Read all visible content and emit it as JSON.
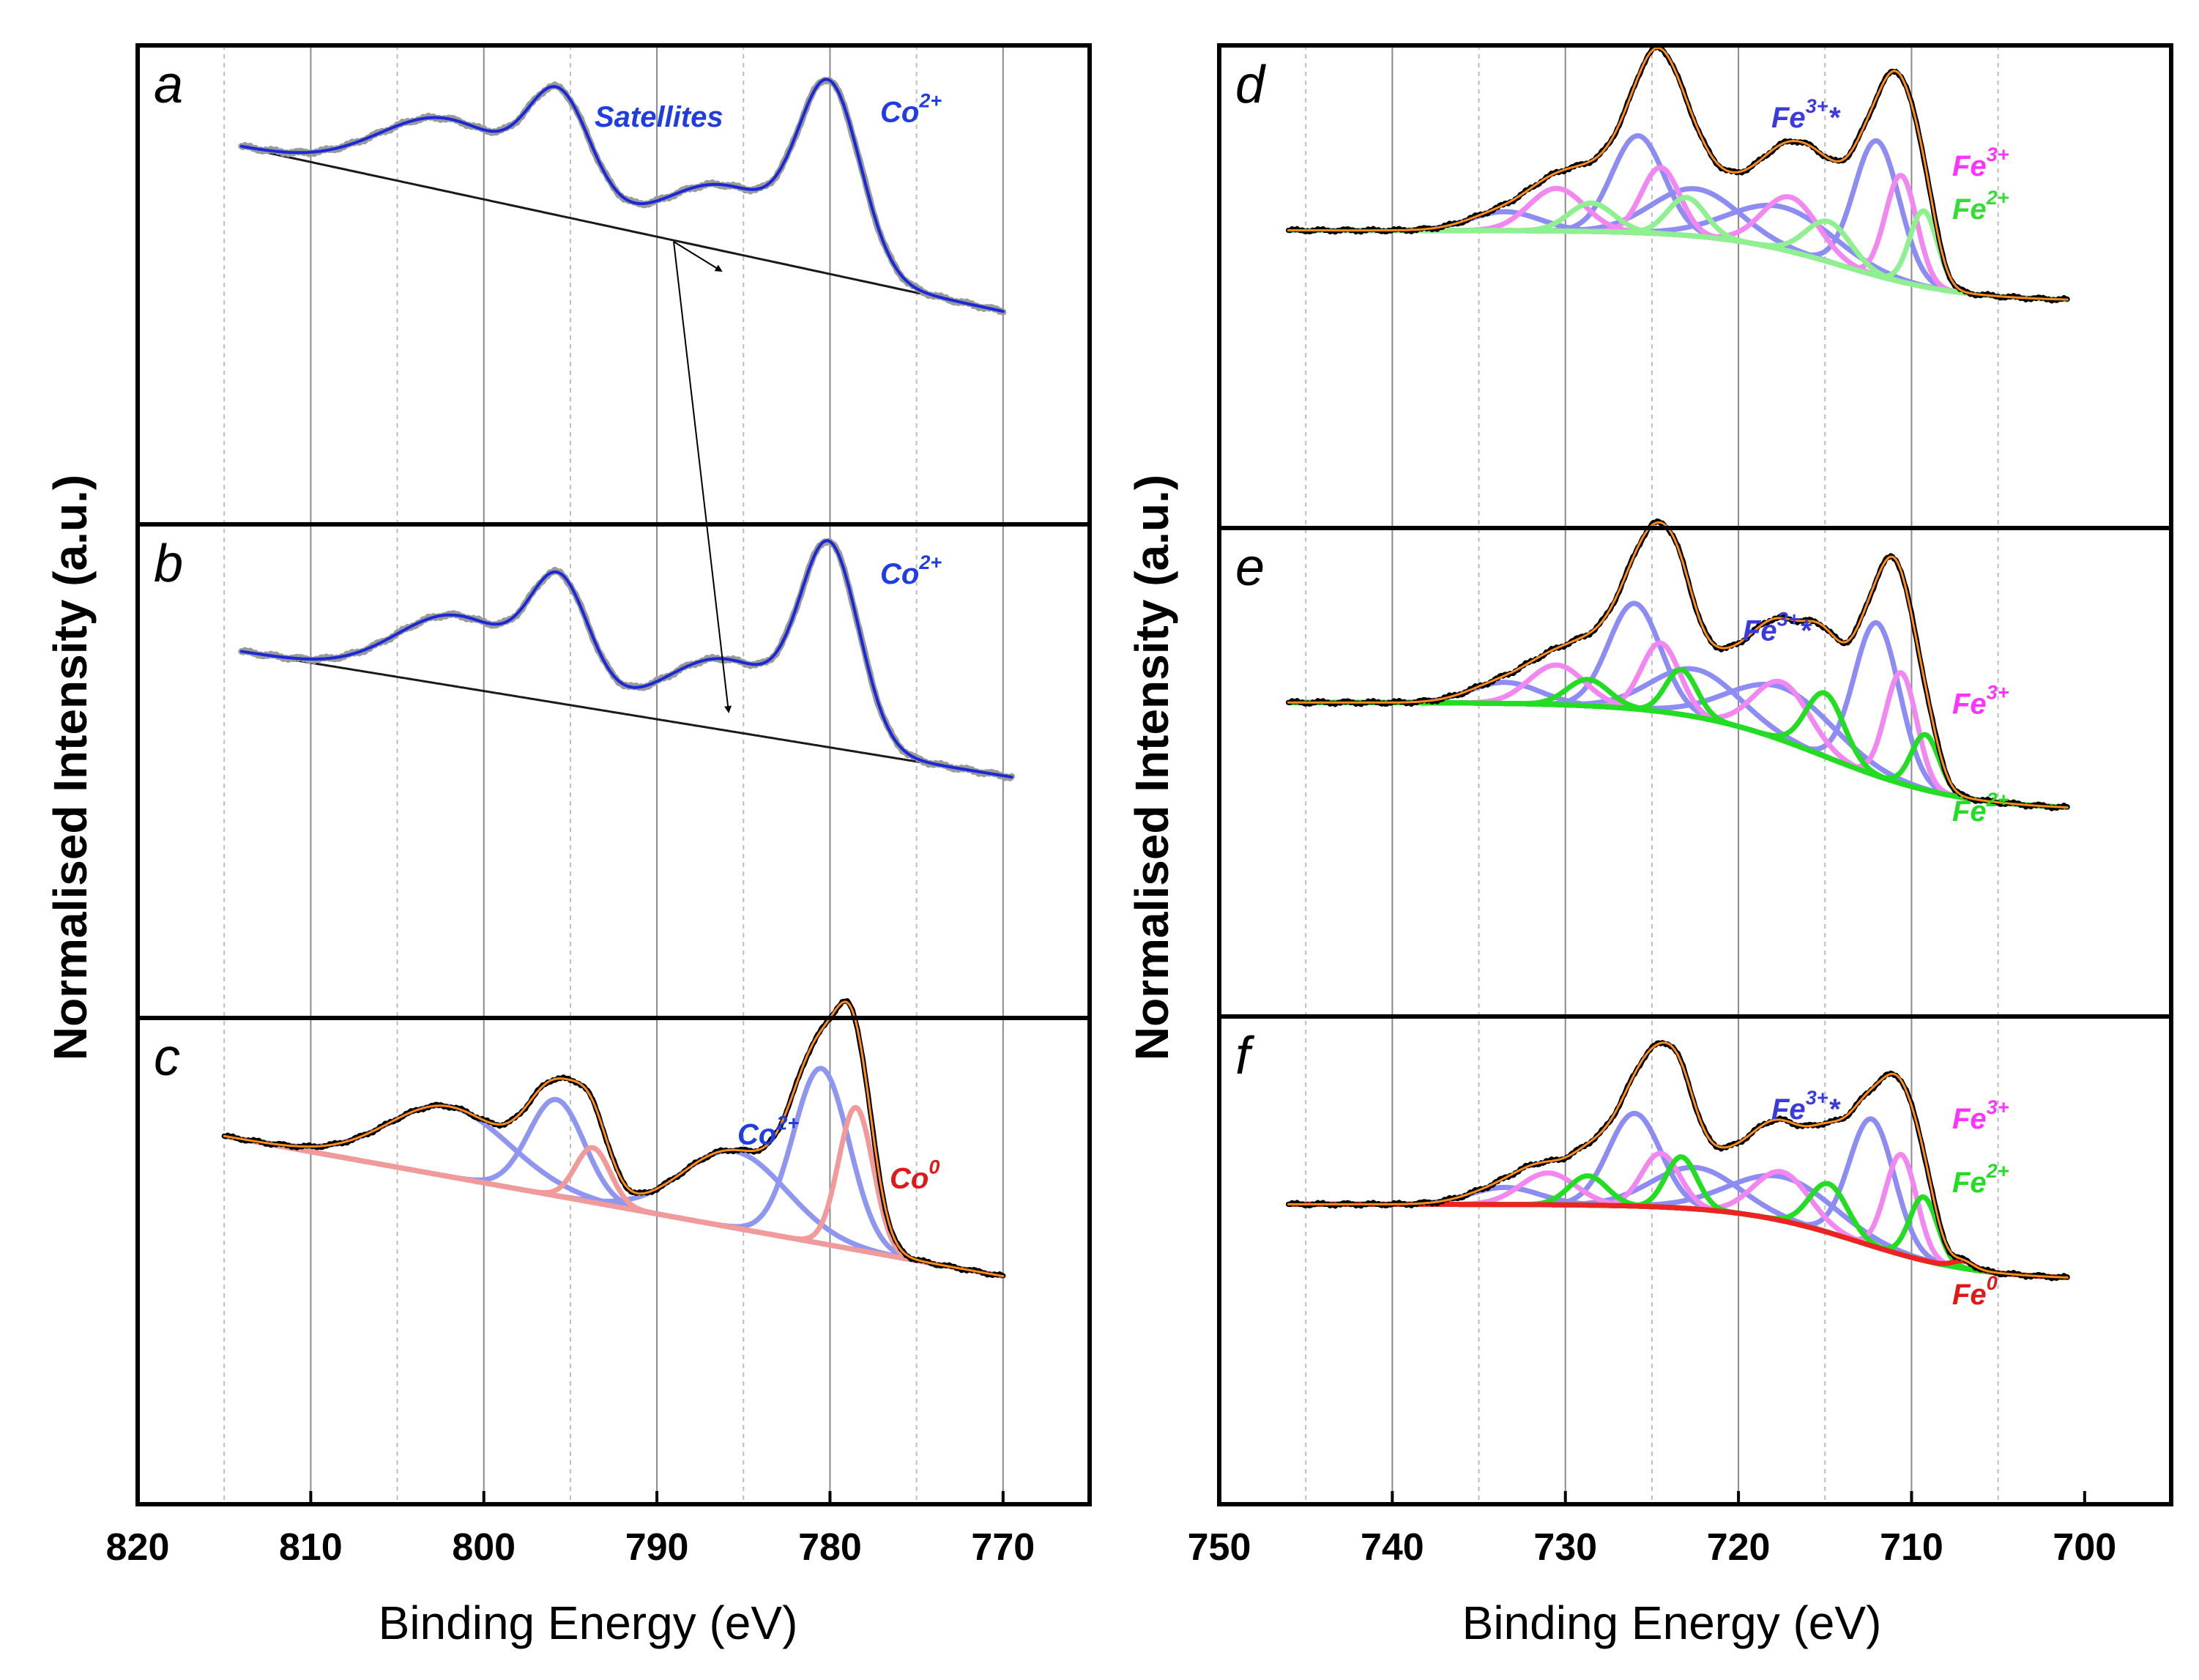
{
  "chart_data": [
    {
      "type": "line",
      "panels": [
        "a",
        "b",
        "c"
      ],
      "xlabel": "Binding Energy (eV)",
      "ylabel": "Normalised Intensity (a.u.)",
      "xlim": [
        820,
        765
      ],
      "xticks": [
        820,
        810,
        800,
        790,
        780,
        770
      ],
      "grid_major": [
        810,
        800,
        790,
        780,
        770
      ],
      "grid_minor": [
        815,
        805,
        795,
        785,
        775
      ],
      "panel_data": [
        {
          "letter": "a",
          "labels": [
            {
              "text": "Co",
              "sup": "2+",
              "color": "#1f3de0"
            },
            {
              "text": "Satellites",
              "color": "#1f3de0"
            }
          ],
          "peaks": [
            {
              "name": "Co2+ 2p3/2",
              "center": 780.0,
              "height": 0.76,
              "width": 1.8
            },
            {
              "name": "satellite",
              "center": 786.0,
              "height": 0.28,
              "width": 3.5
            },
            {
              "name": "Co2+ 2p1/2",
              "center": 795.6,
              "height": 0.45,
              "width": 1.8
            },
            {
              "name": "satellite",
              "center": 802.0,
              "height": 0.31,
              "width": 4.0
            }
          ],
          "background": {
            "start": 814.0,
            "end": 770.0,
            "y_start": 0.73,
            "y_end": 0.03
          },
          "series": [
            {
              "name": "data",
              "color": "#9a9a9a",
              "stroke": 9
            },
            {
              "name": "envelope",
              "color": "#1a28d8",
              "stroke": 4
            }
          ]
        },
        {
          "letter": "b",
          "labels": [
            {
              "text": "Co",
              "sup": "2+",
              "color": "#1f3de0"
            }
          ],
          "peaks": [
            {
              "name": "Co2+ 2p3/2",
              "center": 780.0,
              "height": 0.8,
              "width": 1.7
            },
            {
              "name": "satellite",
              "center": 786.0,
              "height": 0.3,
              "width": 3.5
            },
            {
              "name": "Co2+ 2p1/2",
              "center": 795.6,
              "height": 0.47,
              "width": 1.7
            },
            {
              "name": "satellite",
              "center": 801.5,
              "height": 0.3,
              "width": 3.5
            }
          ],
          "background": {
            "start": 814.0,
            "end": 769.5,
            "y_start": 0.63,
            "y_end": 0.1
          },
          "series": [
            {
              "name": "data",
              "color": "#9a9a9a",
              "stroke": 9
            },
            {
              "name": "envelope",
              "color": "#1a28d8",
              "stroke": 4
            }
          ]
        },
        {
          "letter": "c",
          "labels": [
            {
              "text": "Co",
              "sup": "2+",
              "color": "#1f3de0"
            },
            {
              "text": "Co",
              "sup": "0",
              "color": "#e01818"
            }
          ],
          "components": [
            {
              "name": "Co2+",
              "color": "#8f96f0",
              "peaks": [
                {
                  "center": 780.5,
                  "height": 0.8,
                  "width": 1.6
                },
                {
                  "center": 785.5,
                  "height": 0.35,
                  "width": 3.0
                },
                {
                  "center": 795.8,
                  "height": 0.44,
                  "width": 1.6
                },
                {
                  "center": 802.0,
                  "height": 0.32,
                  "width": 3.5
                }
              ]
            },
            {
              "name": "Co0",
              "color": "#f29a9a",
              "peaks": [
                {
                  "center": 778.5,
                  "height": 0.65,
                  "width": 1.0
                },
                {
                  "center": 793.7,
                  "height": 0.25,
                  "width": 1.0
                }
              ]
            }
          ],
          "background": {
            "start": 815.0,
            "end": 770.0,
            "y_start": 0.66,
            "y_end": 0.02
          },
          "series": [
            {
              "name": "data",
              "color": "#000000",
              "stroke": 7
            },
            {
              "name": "envelope",
              "color": "#ff8c1a",
              "stroke": 3
            }
          ]
        }
      ]
    },
    {
      "type": "line",
      "panels": [
        "d",
        "e",
        "f"
      ],
      "xlabel": "Binding Energy (eV)",
      "ylabel": "Normalised Intensity (a.u.)",
      "xlim": [
        750,
        695
      ],
      "xticks": [
        750,
        740,
        730,
        720,
        710,
        700
      ],
      "grid_major": [
        740,
        730,
        720,
        710
      ],
      "grid_minor": [
        745,
        735,
        725,
        715,
        705
      ],
      "panel_data": [
        {
          "letter": "d",
          "labels": [
            {
              "text": "Fe",
              "sup": "3+",
              "suffix": "*",
              "color": "#3a3adf"
            },
            {
              "text": "Fe",
              "sup": "3+",
              "color": "#ff33ff"
            },
            {
              "text": "Fe",
              "sup": "2+",
              "color": "#33dd33"
            }
          ],
          "components": [
            {
              "name": "Fe3+*",
              "color": "#8c8cf2",
              "peaks": [
                {
                  "center": 712.0,
                  "height": 0.57,
                  "width": 1.3
                },
                {
                  "center": 717.5,
                  "height": 0.18,
                  "width": 3.0
                },
                {
                  "center": 722.5,
                  "height": 0.2,
                  "width": 2.5
                },
                {
                  "center": 725.8,
                  "height": 0.41,
                  "width": 1.5
                },
                {
                  "center": 733.5,
                  "height": 0.08,
                  "width": 2.0
                }
              ]
            },
            {
              "name": "Fe3+",
              "color": "#f287f2",
              "peaks": [
                {
                  "center": 710.6,
                  "height": 0.45,
                  "width": 0.9
                },
                {
                  "center": 717.0,
                  "height": 0.23,
                  "width": 1.6
                },
                {
                  "center": 724.5,
                  "height": 0.28,
                  "width": 1.1
                },
                {
                  "center": 730.5,
                  "height": 0.18,
                  "width": 1.6
                }
              ]
            },
            {
              "name": "Fe2+",
              "color": "#8ff08f",
              "peaks": [
                {
                  "center": 709.3,
                  "height": 0.32,
                  "width": 0.8
                },
                {
                  "center": 714.8,
                  "height": 0.17,
                  "width": 1.3
                },
                {
                  "center": 723.0,
                  "height": 0.16,
                  "width": 1.1
                },
                {
                  "center": 728.5,
                  "height": 0.12,
                  "width": 1.3
                }
              ]
            }
          ],
          "background": {
            "start": 746.0,
            "end": 701.0,
            "y_start": 0.32,
            "y_end": 0.02,
            "step_center": 714.0,
            "step_width": 3.5
          },
          "series": [
            {
              "name": "data",
              "color": "#000000",
              "stroke": 7
            },
            {
              "name": "envelope",
              "color": "#ff8c1a",
              "stroke": 3
            }
          ]
        },
        {
          "letter": "e",
          "labels": [
            {
              "text": "Fe",
              "sup": "3+",
              "suffix": "*",
              "color": "#3a3adf"
            },
            {
              "text": "Fe",
              "sup": "3+",
              "color": "#ff33ff"
            },
            {
              "text": "Fe",
              "sup": "2+",
              "color": "#22dd22"
            }
          ],
          "components": [
            {
              "name": "Fe3+*",
              "color": "#8c8cf2",
              "peaks": [
                {
                  "center": 712.0,
                  "height": 0.58,
                  "width": 1.3
                },
                {
                  "center": 717.5,
                  "height": 0.2,
                  "width": 3.0
                },
                {
                  "center": 722.5,
                  "height": 0.18,
                  "width": 2.5
                },
                {
                  "center": 726.0,
                  "height": 0.4,
                  "width": 1.5
                },
                {
                  "center": 733.5,
                  "height": 0.08,
                  "width": 2.0
                }
              ]
            },
            {
              "name": "Fe3+",
              "color": "#f287f2",
              "peaks": [
                {
                  "center": 710.6,
                  "height": 0.42,
                  "width": 0.9
                },
                {
                  "center": 717.5,
                  "height": 0.22,
                  "width": 1.6
                },
                {
                  "center": 724.5,
                  "height": 0.26,
                  "width": 1.1
                },
                {
                  "center": 730.5,
                  "height": 0.15,
                  "width": 1.6
                }
              ]
            },
            {
              "name": "Fe2+",
              "color": "#22dd22",
              "peaks": [
                {
                  "center": 709.2,
                  "height": 0.21,
                  "width": 0.8
                },
                {
                  "center": 715.0,
                  "height": 0.24,
                  "width": 1.1
                },
                {
                  "center": 723.3,
                  "height": 0.17,
                  "width": 0.9
                },
                {
                  "center": 728.7,
                  "height": 0.1,
                  "width": 1.2
                }
              ]
            }
          ],
          "background": {
            "start": 746.0,
            "end": 701.0,
            "y_start": 0.45,
            "y_end": 0.04,
            "step_center": 715.0,
            "step_width": 4.0
          },
          "series": [
            {
              "name": "data",
              "color": "#000000",
              "stroke": 7
            },
            {
              "name": "envelope",
              "color": "#ff8c1a",
              "stroke": 3
            }
          ]
        },
        {
          "letter": "f",
          "labels": [
            {
              "text": "Fe",
              "sup": "3+",
              "suffix": "*",
              "color": "#3a3adf"
            },
            {
              "text": "Fe",
              "sup": "3+",
              "color": "#ff33ff"
            },
            {
              "text": "Fe",
              "sup": "2+",
              "color": "#22dd22"
            },
            {
              "text": "Fe",
              "sup": "0",
              "color": "#e01818"
            }
          ],
          "components": [
            {
              "name": "Fe3+*",
              "color": "#8c8cf2",
              "peaks": [
                {
                  "center": 712.3,
                  "height": 0.52,
                  "width": 1.3
                },
                {
                  "center": 717.5,
                  "height": 0.18,
                  "width": 3.0
                },
                {
                  "center": 722.5,
                  "height": 0.17,
                  "width": 2.5
                },
                {
                  "center": 726.0,
                  "height": 0.38,
                  "width": 1.5
                },
                {
                  "center": 733.5,
                  "height": 0.07,
                  "width": 2.0
                }
              ]
            },
            {
              "name": "Fe3+",
              "color": "#f287f2",
              "peaks": [
                {
                  "center": 710.6,
                  "height": 0.41,
                  "width": 0.9
                },
                {
                  "center": 717.5,
                  "height": 0.2,
                  "width": 1.6
                },
                {
                  "center": 724.5,
                  "height": 0.22,
                  "width": 1.1
                },
                {
                  "center": 731.0,
                  "height": 0.13,
                  "width": 1.6
                }
              ]
            },
            {
              "name": "Fe2+",
              "color": "#22dd22",
              "peaks": [
                {
                  "center": 709.3,
                  "height": 0.26,
                  "width": 0.8
                },
                {
                  "center": 714.8,
                  "height": 0.2,
                  "width": 1.1
                },
                {
                  "center": 723.3,
                  "height": 0.21,
                  "width": 0.9
                },
                {
                  "center": 728.7,
                  "height": 0.12,
                  "width": 1.1
                }
              ]
            },
            {
              "name": "Fe0",
              "color": "#ee2222",
              "peaks": [
                {
                  "center": 707.0,
                  "height": 0.03,
                  "width": 0.6
                }
              ]
            }
          ],
          "background": {
            "start": 746.0,
            "end": 701.0,
            "y_start": 0.33,
            "y_end": 0.02,
            "step_center": 713.0,
            "step_width": 3.5
          },
          "series": [
            {
              "name": "data",
              "color": "#000000",
              "stroke": 7
            },
            {
              "name": "envelope",
              "color": "#ff8c1a",
              "stroke": 3
            }
          ]
        }
      ]
    }
  ],
  "annotations": {
    "arrow_label": "Satellites"
  }
}
